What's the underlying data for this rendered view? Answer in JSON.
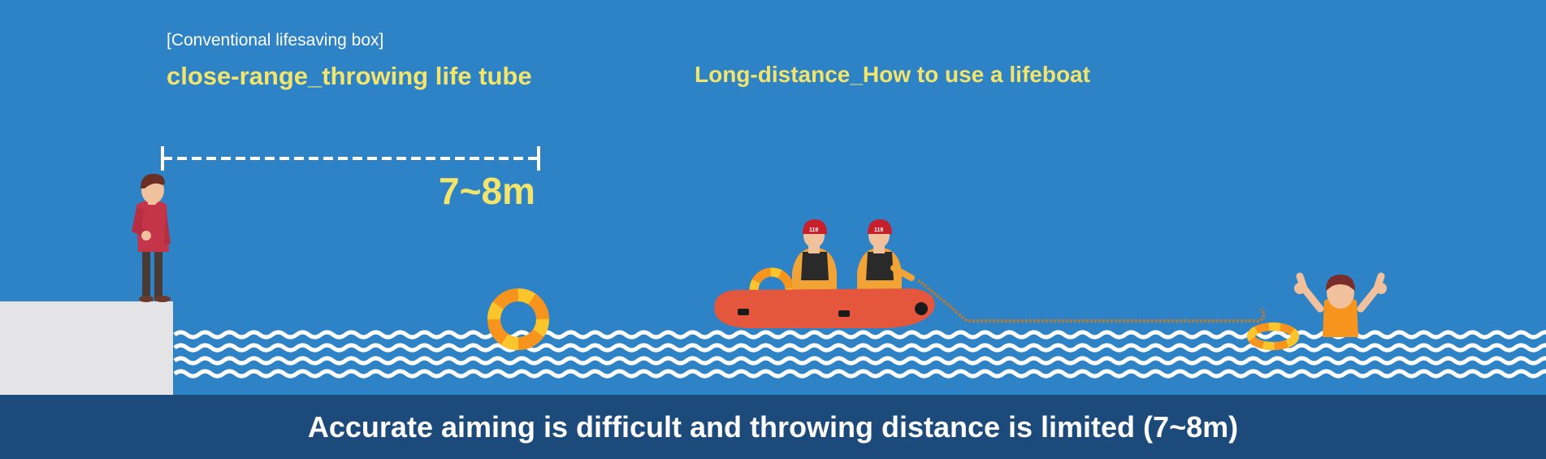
{
  "labels": {
    "subtitle": "[Conventional lifesaving box]",
    "left_heading": "close-range_throwing life tube",
    "right_heading": "Long-distance_How to use a lifeboat",
    "distance": "7~8m",
    "footer": "Accurate aiming is difficult and throwing distance is limited (7~8m)"
  },
  "helmet_text": "119",
  "colors": {
    "sea": "#2e83c6",
    "footer_bar": "#1c4a7a",
    "heading_yellow": "#f3e46b",
    "boat_red": "#e4573c",
    "ring_orange": "#f7941d",
    "ring_yellow": "#fbc52b",
    "dock_gray": "#e4e4e6"
  },
  "icons": [
    "person-standing-icon",
    "life-ring-icon",
    "rescue-boat-icon",
    "rescuer-icon",
    "swimmer-icon",
    "rope-icon",
    "wave-icon"
  ]
}
